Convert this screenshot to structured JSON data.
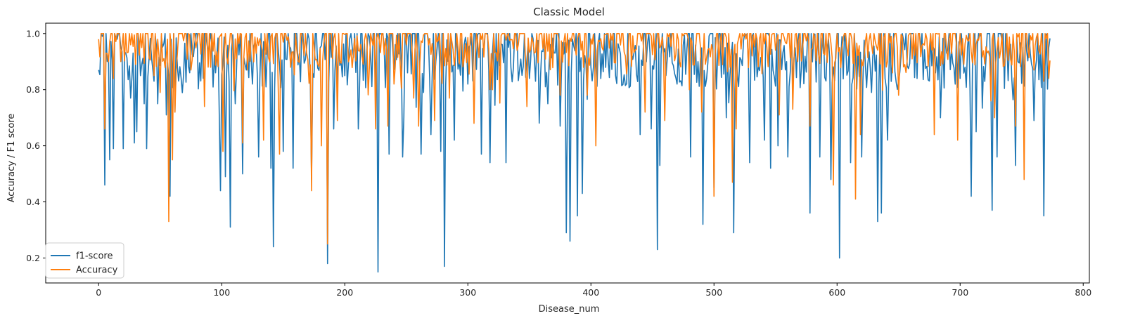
{
  "chart_data": {
    "type": "line",
    "title": "Classic Model",
    "xlabel": "Disease_num",
    "ylabel": "Accuracy / F1 score",
    "xlim": [
      -43,
      805
    ],
    "ylim": [
      0.111,
      1.037
    ],
    "xticks": [
      0,
      100,
      200,
      300,
      400,
      500,
      600,
      700,
      800
    ],
    "yticks": [
      0.2,
      0.4,
      0.6,
      0.8,
      1.0
    ],
    "xtick_labels": [
      "0",
      "100",
      "200",
      "300",
      "400",
      "500",
      "600",
      "700",
      "800"
    ],
    "ytick_labels": [
      "0.2",
      "0.4",
      "0.6",
      "0.8",
      "1.0"
    ],
    "grid": false,
    "legend_position": "lower-left",
    "n_points": 774,
    "series": [
      {
        "name": "f1-score",
        "color": "#1f77b4",
        "baseline": 0.9,
        "values_by_index": {
          "0": 0.87,
          "3": 0.99,
          "5": 0.46,
          "8": 0.92,
          "9": 0.55,
          "12": 0.59,
          "15": 0.98,
          "18": 0.95,
          "20": 0.59,
          "26": 0.77,
          "29": 0.61,
          "31": 0.65,
          "34": 0.85,
          "37": 0.75,
          "39": 0.59,
          "45": 0.83,
          "48": 0.75,
          "55": 0.71,
          "58": 0.42,
          "62": 0.72,
          "95": 0.86,
          "99": 0.44,
          "103": 0.49,
          "107": 0.31,
          "111": 0.75,
          "117": 0.5,
          "125": 0.82,
          "130": 0.56,
          "136": 0.81,
          "140": 0.52,
          "142": 0.24,
          "150": 0.58,
          "158": 0.52,
          "173": 0.48,
          "186": 0.18,
          "191": 0.66,
          "200": 0.85,
          "211": 0.66,
          "227": 0.15,
          "236": 0.57,
          "247": 0.56,
          "262": 0.57,
          "270": 0.64,
          "278": 0.58,
          "281": 0.17,
          "289": 0.62,
          "300": 0.82,
          "311": 0.57,
          "318": 0.54,
          "331": 0.54,
          "350": 0.84,
          "365": 0.75,
          "375": 0.67,
          "380": 0.29,
          "383": 0.26,
          "389": 0.35,
          "393": 0.43,
          "400": 0.88,
          "420": 0.85,
          "440": 0.64,
          "449": 0.66,
          "454": 0.23,
          "456": 0.53,
          "470": 0.82,
          "481": 0.56,
          "491": 0.32,
          "500": 0.45,
          "510": 0.7,
          "516": 0.29,
          "529": 0.54,
          "541": 0.62,
          "546": 0.52,
          "552": 0.6,
          "560": 0.56,
          "578": 0.36,
          "586": 0.56,
          "595": 0.48,
          "602": 0.2,
          "611": 0.54,
          "620": 0.56,
          "628": 0.79,
          "633": 0.33,
          "636": 0.36,
          "641": 0.62,
          "650": 0.83,
          "665": 0.84,
          "684": 0.7,
          "700": 0.84,
          "709": 0.42,
          "713": 0.65,
          "726": 0.37,
          "730": 0.56,
          "745": 0.53,
          "760": 0.69,
          "768": 0.35,
          "772": 0.95
        }
      },
      {
        "name": "Accuracy",
        "color": "#ff7f0e",
        "baseline": 0.95,
        "values_by_index": {
          "0": 0.98,
          "3": 1.0,
          "5": 0.66,
          "8": 0.9,
          "12": 0.84,
          "18": 0.9,
          "26": 0.96,
          "30": 0.89,
          "35": 0.95,
          "45": 0.85,
          "50": 0.79,
          "57": 0.33,
          "60": 0.55,
          "62": 0.72,
          "75": 0.87,
          "86": 0.74,
          "101": 0.58,
          "117": 0.61,
          "134": 0.62,
          "147": 0.57,
          "173": 0.44,
          "181": 0.6,
          "186": 0.25,
          "194": 0.69,
          "220": 0.88,
          "225": 0.66,
          "235": 0.67,
          "240": 0.82,
          "256": 0.77,
          "260": 0.67,
          "273": 0.69,
          "285": 0.77,
          "305": 0.68,
          "320": 0.8,
          "340": 0.94,
          "348": 0.74,
          "375": 0.78,
          "397": 0.78,
          "404": 0.6,
          "430": 0.91,
          "444": 0.72,
          "460": 0.69,
          "480": 0.8,
          "490": 0.72,
          "500": 0.42,
          "515": 0.47,
          "518": 0.66,
          "531": 0.92,
          "553": 0.71,
          "564": 0.73,
          "578": 0.67,
          "597": 0.46,
          "615": 0.41,
          "619": 0.64,
          "645": 0.86,
          "650": 0.78,
          "679": 0.64,
          "698": 0.62,
          "725": 0.76,
          "728": 0.7,
          "745": 0.67,
          "752": 0.48,
          "760": 0.87,
          "768": 0.83,
          "772": 0.84
        }
      }
    ]
  }
}
